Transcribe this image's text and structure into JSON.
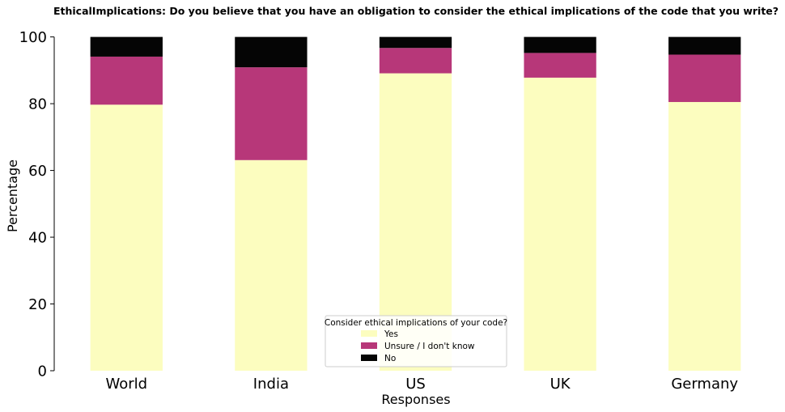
{
  "chart_data": {
    "type": "bar",
    "stacked": true,
    "title": "EthicalImplications: Do you believe that you have an obligation to consider the ethical implications of the code that you write?",
    "xlabel": "Responses",
    "ylabel": "Percentage",
    "ylim": [
      0,
      105
    ],
    "yticks": [
      0,
      20,
      40,
      60,
      80,
      100
    ],
    "categories": [
      "World",
      "India",
      "US",
      "UK",
      "Germany"
    ],
    "series": [
      {
        "name": "Yes",
        "color": "#fcfdbf",
        "values": [
          79.7,
          63.1,
          89.1,
          87.8,
          80.5
        ]
      },
      {
        "name": "Unsure / I don't know",
        "color": "#b73779",
        "values": [
          14.4,
          27.8,
          7.6,
          7.4,
          14.2
        ]
      },
      {
        "name": "No",
        "color": "#050505",
        "values": [
          5.9,
          9.1,
          3.3,
          4.8,
          5.3
        ]
      }
    ],
    "legend": {
      "title": "Consider ethical implications of your code?",
      "placement": "lower-center"
    },
    "grid": false
  }
}
